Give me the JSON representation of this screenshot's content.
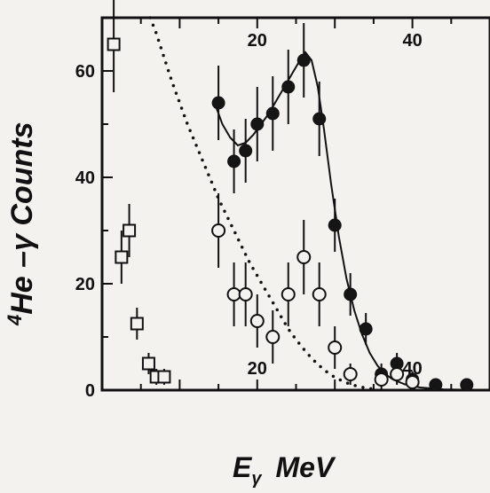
{
  "chart_data": {
    "type": "scatter",
    "xlabel": "E",
    "xlabel_sub": "γ",
    "xlabel_unit": "MeV",
    "ylabel_sup": "4",
    "ylabel": "He –γ  Counts",
    "xlim": [
      0,
      50
    ],
    "ylim": [
      0,
      70
    ],
    "x_ticks_top": [
      20,
      40
    ],
    "x_ticks_bottom": [
      20,
      40
    ],
    "y_ticks": [
      0,
      20,
      40,
      60
    ],
    "series": [
      {
        "marker": "square-open",
        "points": [
          {
            "x": 1.5,
            "y": 65,
            "err": 9
          },
          {
            "x": 2.5,
            "y": 25,
            "err": 5
          },
          {
            "x": 3.5,
            "y": 30,
            "err": 5
          },
          {
            "x": 4.5,
            "y": 12.5,
            "err": 3
          },
          {
            "x": 6,
            "y": 5,
            "err": 2
          },
          {
            "x": 7,
            "y": 2.5,
            "err": 1.5
          },
          {
            "x": 8,
            "y": 2.5,
            "err": 1.5
          }
        ]
      },
      {
        "marker": "circle-filled",
        "points": [
          {
            "x": 15,
            "y": 54,
            "err": 7
          },
          {
            "x": 17,
            "y": 43,
            "err": 6
          },
          {
            "x": 18.5,
            "y": 45,
            "err": 6
          },
          {
            "x": 20,
            "y": 50,
            "err": 7
          },
          {
            "x": 22,
            "y": 52,
            "err": 7
          },
          {
            "x": 24,
            "y": 57,
            "err": 7
          },
          {
            "x": 26,
            "y": 62,
            "err": 7
          },
          {
            "x": 28,
            "y": 51,
            "err": 7
          },
          {
            "x": 30,
            "y": 31,
            "err": 5
          },
          {
            "x": 32,
            "y": 18,
            "err": 4
          },
          {
            "x": 34,
            "y": 11.5,
            "err": 3
          },
          {
            "x": 36,
            "y": 3,
            "err": 2
          },
          {
            "x": 38,
            "y": 5,
            "err": 2
          },
          {
            "x": 40,
            "y": 2,
            "err": 1.5
          },
          {
            "x": 43,
            "y": 1,
            "err": 1
          },
          {
            "x": 47,
            "y": 1,
            "err": 1
          }
        ]
      },
      {
        "marker": "circle-open",
        "points": [
          {
            "x": 15,
            "y": 30,
            "err": 7
          },
          {
            "x": 17,
            "y": 18,
            "err": 6
          },
          {
            "x": 18.5,
            "y": 18,
            "err": 6
          },
          {
            "x": 20,
            "y": 13,
            "err": 5
          },
          {
            "x": 22,
            "y": 10,
            "err": 5
          },
          {
            "x": 24,
            "y": 18,
            "err": 6
          },
          {
            "x": 26,
            "y": 25,
            "err": 7
          },
          {
            "x": 28,
            "y": 18,
            "err": 6
          },
          {
            "x": 30,
            "y": 8,
            "err": 4
          },
          {
            "x": 32,
            "y": 3,
            "err": 2
          },
          {
            "x": 36,
            "y": 2,
            "err": 2
          },
          {
            "x": 38,
            "y": 3,
            "err": 2
          },
          {
            "x": 40,
            "y": 1.5,
            "err": 1.5
          }
        ]
      }
    ],
    "curves": [
      {
        "style": "solid",
        "points": [
          [
            14.5,
            54
          ],
          [
            15.5,
            50
          ],
          [
            16.5,
            47.5
          ],
          [
            17.5,
            46
          ],
          [
            18.5,
            46.5
          ],
          [
            19.5,
            48
          ],
          [
            20.5,
            50
          ],
          [
            21.5,
            52
          ],
          [
            22.5,
            54.5
          ],
          [
            23.5,
            57
          ],
          [
            24.5,
            59.5
          ],
          [
            25.5,
            62
          ],
          [
            26.2,
            63.5
          ],
          [
            27,
            62
          ],
          [
            27.8,
            57
          ],
          [
            28.6,
            49
          ],
          [
            29.5,
            39
          ],
          [
            30.5,
            29
          ],
          [
            31.5,
            21
          ],
          [
            32.5,
            15
          ],
          [
            33.5,
            10.5
          ],
          [
            34.5,
            7
          ],
          [
            35.5,
            4.6
          ],
          [
            36.5,
            3
          ],
          [
            37.5,
            2
          ],
          [
            39,
            1.1
          ],
          [
            41,
            0.5
          ],
          [
            44,
            0.15
          ],
          [
            48,
            0.05
          ]
        ]
      },
      {
        "style": "dotted",
        "points": [
          [
            6.2,
            70
          ],
          [
            7,
            67
          ],
          [
            8,
            62.5
          ],
          [
            9,
            58
          ],
          [
            10,
            54
          ],
          [
            11,
            50
          ],
          [
            12,
            46.5
          ],
          [
            13,
            43
          ],
          [
            14,
            39.5
          ],
          [
            15,
            36
          ],
          [
            16,
            33
          ],
          [
            17,
            30
          ],
          [
            18,
            27
          ],
          [
            19,
            24
          ],
          [
            20,
            21.5
          ],
          [
            21,
            19
          ],
          [
            22,
            16.5
          ],
          [
            23,
            14
          ],
          [
            24,
            11.5
          ],
          [
            25,
            9.5
          ],
          [
            26,
            7.7
          ],
          [
            27,
            6
          ],
          [
            28,
            4.6
          ],
          [
            29,
            3.4
          ],
          [
            30,
            2.4
          ],
          [
            31,
            1.7
          ],
          [
            32,
            1.1
          ],
          [
            33,
            0.7
          ],
          [
            34,
            0.4
          ],
          [
            35,
            0.2
          ]
        ]
      }
    ]
  }
}
